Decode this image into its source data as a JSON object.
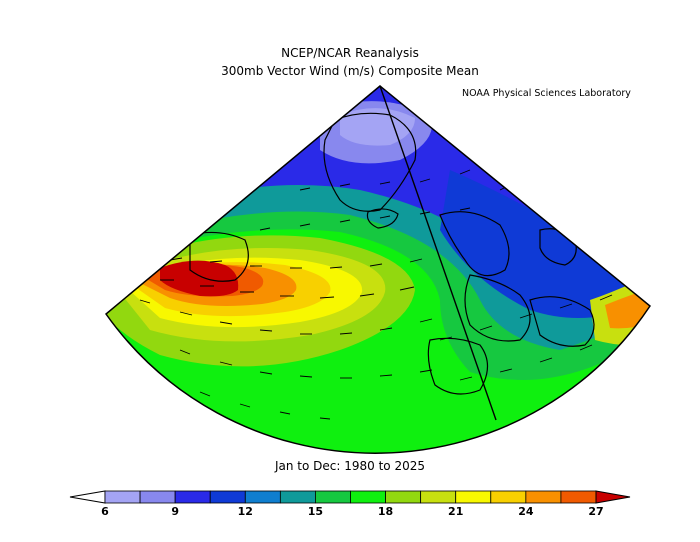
{
  "header": {
    "title_line1": "NCEP/NCAR Reanalysis",
    "title_line2": "300mb Vector Wind (m/s) Composite Mean",
    "lab_credit": "NOAA Physical Sciences Laboratory"
  },
  "footer": {
    "period": "Jan to Dec: 1980 to 2025"
  },
  "colorbar": {
    "levels": [
      6,
      7.5,
      9,
      10.5,
      12,
      13.5,
      15,
      16.5,
      18,
      19.5,
      21,
      22.5,
      24,
      25.5,
      27
    ],
    "colors": [
      "#a4a4f4",
      "#8888ee",
      "#2a2ae8",
      "#0f3ad6",
      "#0f7ecf",
      "#0f9a9a",
      "#16c840",
      "#0ff00f",
      "#92d80f",
      "#c8e00f",
      "#f8f800",
      "#f8d000",
      "#f89000",
      "#f05a00",
      "#c80000"
    ],
    "tick_labels": [
      "6",
      "9",
      "12",
      "15",
      "18",
      "21",
      "24",
      "27"
    ]
  }
}
